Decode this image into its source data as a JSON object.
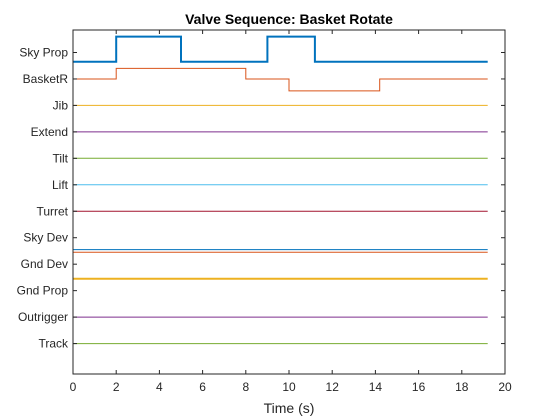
{
  "chart_data": {
    "type": "line",
    "title": "Valve Sequence: Basket Rotate",
    "xlabel": "Time (s)",
    "ylabel": "",
    "xlim": [
      0,
      20
    ],
    "xticks": [
      0,
      2,
      4,
      6,
      8,
      10,
      12,
      14,
      16,
      18,
      20
    ],
    "ylim": [
      -24.3,
      1.7
    ],
    "y_categories": [
      {
        "label": "Sky Prop",
        "y": 0
      },
      {
        "label": "BasketR",
        "y": -2
      },
      {
        "label": "Jib",
        "y": -4
      },
      {
        "label": "Extend",
        "y": -6
      },
      {
        "label": "Tilt",
        "y": -8
      },
      {
        "label": "Lift",
        "y": -10
      },
      {
        "label": "Turret",
        "y": -12
      },
      {
        "label": "Sky Dev",
        "y": -14
      },
      {
        "label": "Gnd Dev",
        "y": -16
      },
      {
        "label": "Gnd Prop",
        "y": -18
      },
      {
        "label": "Outrigger",
        "y": -20
      },
      {
        "label": "Track",
        "y": -22
      }
    ],
    "grid": false,
    "series": [
      {
        "color": "#0072BD",
        "width": 2,
        "x": [
          0,
          2,
          2,
          5,
          5,
          9,
          9,
          11.2,
          11.2,
          19.2
        ],
        "y": [
          -0.7,
          -0.7,
          1.2,
          1.2,
          -0.7,
          -0.7,
          1.2,
          1.2,
          -0.7,
          -0.7
        ]
      },
      {
        "color": "#D95319",
        "width": 1,
        "x": [
          0,
          2,
          2,
          8,
          8,
          10,
          10,
          14.2,
          14.2,
          19.2
        ],
        "y": [
          -2,
          -2,
          -1.2,
          -1.2,
          -2,
          -2,
          -2.9,
          -2.9,
          -2,
          -2
        ]
      },
      {
        "color": "#EDB120",
        "width": 1,
        "x": [
          0,
          19.2
        ],
        "y": [
          -4,
          -4
        ]
      },
      {
        "color": "#7E2F8E",
        "width": 1,
        "x": [
          0,
          19.2
        ],
        "y": [
          -6,
          -6
        ]
      },
      {
        "color": "#77AC30",
        "width": 1,
        "x": [
          0,
          19.2
        ],
        "y": [
          -8,
          -8
        ]
      },
      {
        "color": "#4DBEEE",
        "width": 1,
        "x": [
          0,
          19.2
        ],
        "y": [
          -10,
          -10
        ]
      },
      {
        "color": "#A2142F",
        "width": 1,
        "x": [
          0,
          19.2
        ],
        "y": [
          -12,
          -12
        ]
      },
      {
        "color": "#0072BD",
        "width": 1,
        "x": [
          0,
          19.2
        ],
        "y": [
          -14.9,
          -14.9
        ]
      },
      {
        "color": "#D95319",
        "width": 1,
        "x": [
          0,
          19.2
        ],
        "y": [
          -15.1,
          -15.1
        ]
      },
      {
        "color": "#EDB120",
        "width": 2,
        "x": [
          0,
          19.2
        ],
        "y": [
          -17.1,
          -17.1
        ]
      },
      {
        "color": "#7E2F8E",
        "width": 1,
        "x": [
          0,
          19.2
        ],
        "y": [
          -20,
          -20
        ]
      },
      {
        "color": "#77AC30",
        "width": 1,
        "x": [
          0,
          19.2
        ],
        "y": [
          -22,
          -22
        ]
      }
    ]
  }
}
